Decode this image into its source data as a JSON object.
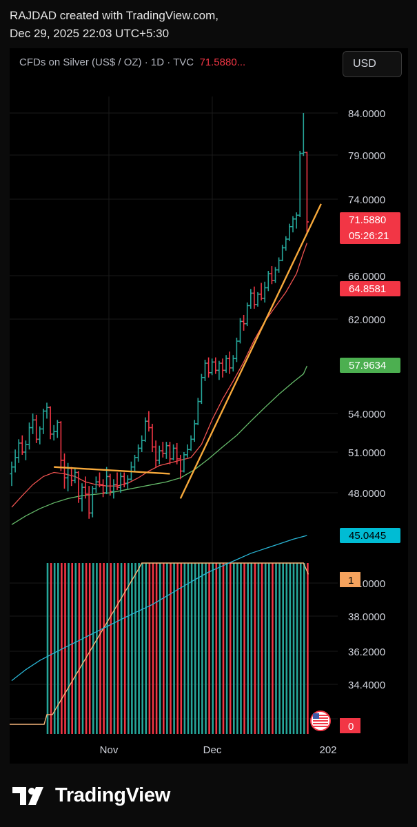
{
  "header": {
    "line1": "RAJDAD created with TradingView.com,",
    "line2": "Dec 29, 2025 22:03 UTC+5:30"
  },
  "symbol": {
    "name": "CFDs on Silver (US$ / OZ) · 1D · TVC",
    "price": "71.5880..."
  },
  "currency_button": "USD",
  "brand": {
    "name": "TradingView"
  },
  "colors": {
    "up": "#26a69a",
    "down": "#f23645",
    "trendline": "#f7a93b",
    "ma_red": "#ef5350",
    "ma_green": "#66bb6a",
    "ma_blue": "#29b6d6",
    "indicator_orange": "#f5b57a"
  },
  "chart_data": {
    "type": "ohlc",
    "x_ticks": [
      "Nov",
      "Dec",
      "202"
    ],
    "y_ticks": [
      "84.0000",
      "79.0000",
      "74.0000",
      "66.0000",
      "62.0000",
      "54.0000",
      "51.0000",
      "48.0000",
      "40.0000",
      "38.0000",
      "36.2000",
      "34.4000"
    ],
    "grid": true,
    "price_labels": [
      {
        "text": "71.5880",
        "sub": "05:26:21",
        "color": "#f23645",
        "value": 71.588
      },
      {
        "text": "64.8581",
        "color": "#f23645",
        "value": 64.8581
      },
      {
        "text": "57.9634",
        "color": "#4caf50",
        "value": 57.9634
      },
      {
        "text": "45.0445",
        "color": "#00bcd4",
        "value": 45.0445
      }
    ],
    "indicator_labels": [
      {
        "text": "1",
        "color": "#f5a25d"
      },
      {
        "text": "0",
        "color": "#f23645"
      }
    ],
    "bars": [
      [
        49.4,
        50.3,
        48.5,
        49.9
      ],
      [
        49.9,
        51.2,
        49.5,
        50.6
      ],
      [
        50.6,
        52.0,
        50.2,
        51.7
      ],
      [
        51.7,
        52.3,
        50.8,
        51.0
      ],
      [
        51.0,
        51.9,
        50.4,
        51.6
      ],
      [
        51.6,
        53.3,
        51.2,
        52.9
      ],
      [
        52.9,
        54.0,
        52.4,
        53.5
      ],
      [
        53.5,
        53.9,
        51.7,
        52.0
      ],
      [
        52.0,
        53.0,
        51.6,
        52.8
      ],
      [
        52.8,
        54.4,
        52.4,
        54.2
      ],
      [
        54.2,
        54.9,
        53.6,
        54.5
      ],
      [
        54.5,
        54.6,
        52.0,
        52.4
      ],
      [
        52.4,
        53.1,
        51.9,
        52.6
      ],
      [
        52.6,
        53.5,
        52.1,
        53.3
      ],
      [
        53.3,
        53.4,
        49.6,
        50.4
      ],
      [
        50.4,
        50.9,
        48.3,
        49.1
      ],
      [
        49.1,
        50.2,
        48.1,
        49.8
      ],
      [
        49.8,
        49.9,
        48.5,
        48.9
      ],
      [
        48.9,
        49.8,
        48.7,
        49.5
      ],
      [
        49.5,
        49.6,
        47.3,
        47.6
      ],
      [
        47.6,
        48.7,
        46.7,
        48.4
      ],
      [
        48.4,
        49.2,
        47.6,
        47.9
      ],
      [
        47.9,
        48.5,
        46.2,
        46.6
      ],
      [
        46.6,
        48.5,
        46.3,
        48.3
      ],
      [
        48.3,
        49.2,
        48.0,
        48.8
      ],
      [
        48.8,
        49.5,
        48.4,
        48.6
      ],
      [
        48.6,
        49.0,
        47.7,
        48.0
      ],
      [
        48.0,
        49.9,
        47.9,
        49.2
      ],
      [
        49.2,
        49.4,
        47.8,
        48.1
      ],
      [
        48.1,
        49.0,
        47.6,
        48.6
      ],
      [
        48.6,
        49.5,
        48.2,
        48.4
      ],
      [
        48.4,
        49.5,
        48.0,
        49.2
      ],
      [
        49.2,
        49.5,
        48.4,
        48.7
      ],
      [
        48.7,
        49.3,
        48.3,
        49.0
      ],
      [
        49.0,
        50.3,
        48.9,
        49.9
      ],
      [
        49.9,
        50.8,
        49.5,
        50.6
      ],
      [
        50.6,
        51.6,
        50.3,
        51.3
      ],
      [
        51.3,
        52.3,
        51.0,
        51.9
      ],
      [
        51.9,
        53.7,
        51.8,
        53.4
      ],
      [
        53.4,
        54.2,
        52.6,
        52.9
      ],
      [
        52.9,
        53.2,
        51.0,
        51.4
      ],
      [
        51.4,
        51.9,
        49.9,
        50.4
      ],
      [
        50.4,
        51.5,
        50.1,
        51.1
      ],
      [
        51.1,
        51.8,
        50.6,
        50.9
      ],
      [
        50.9,
        51.8,
        50.5,
        51.5
      ],
      [
        51.5,
        51.8,
        50.1,
        50.5
      ],
      [
        50.5,
        51.6,
        50.4,
        51.3
      ],
      [
        51.3,
        51.7,
        50.1,
        50.5
      ],
      [
        50.5,
        50.8,
        49.0,
        49.6
      ],
      [
        49.6,
        51.0,
        49.5,
        50.8
      ],
      [
        50.8,
        51.6,
        50.6,
        51.2
      ],
      [
        51.2,
        52.3,
        51.1,
        52.0
      ],
      [
        52.0,
        53.5,
        51.8,
        53.2
      ],
      [
        53.2,
        55.3,
        53.1,
        55.0
      ],
      [
        55.0,
        57.3,
        54.8,
        57.0
      ],
      [
        57.0,
        58.5,
        56.7,
        58.2
      ],
      [
        58.2,
        58.7,
        57.0,
        57.4
      ],
      [
        57.4,
        58.6,
        57.2,
        58.3
      ],
      [
        58.3,
        58.7,
        57.3,
        57.6
      ],
      [
        57.6,
        58.4,
        56.8,
        58.2
      ],
      [
        58.2,
        58.6,
        57.0,
        57.6
      ],
      [
        57.6,
        58.9,
        57.4,
        58.6
      ],
      [
        58.6,
        59.2,
        57.3,
        57.8
      ],
      [
        57.8,
        58.9,
        57.5,
        58.6
      ],
      [
        58.6,
        60.4,
        58.3,
        60.1
      ],
      [
        60.1,
        62.1,
        59.9,
        61.8
      ],
      [
        61.8,
        62.4,
        61.0,
        61.6
      ],
      [
        61.6,
        63.6,
        61.4,
        63.3
      ],
      [
        63.3,
        64.9,
        63.0,
        64.5
      ],
      [
        64.5,
        65.1,
        63.0,
        63.4
      ],
      [
        63.4,
        64.6,
        63.2,
        64.4
      ],
      [
        64.4,
        65.4,
        63.8,
        64.0
      ],
      [
        64.0,
        65.5,
        63.6,
        65.0
      ],
      [
        65.0,
        66.5,
        64.7,
        66.2
      ],
      [
        66.2,
        67.0,
        65.3,
        65.6
      ],
      [
        65.6,
        66.9,
        65.4,
        66.6
      ],
      [
        66.6,
        67.9,
        66.3,
        67.6
      ],
      [
        67.6,
        69.2,
        67.5,
        68.9
      ],
      [
        68.9,
        70.1,
        68.6,
        69.8
      ],
      [
        69.8,
        71.4,
        69.6,
        71.1
      ],
      [
        71.1,
        72.2,
        70.5,
        71.9
      ],
      [
        71.9,
        72.6,
        70.9,
        72.3
      ],
      [
        72.3,
        79.5,
        72.1,
        79.2
      ],
      [
        79.2,
        84.0,
        78.9,
        79.3
      ],
      [
        79.3,
        79.4,
        70.3,
        71.588
      ]
    ],
    "ma_red": [
      [
        0,
        47.0
      ],
      [
        3,
        47.8
      ],
      [
        6,
        48.6
      ],
      [
        9,
        49.2
      ],
      [
        12,
        49.5
      ],
      [
        15,
        49.4
      ],
      [
        18,
        49.2
      ],
      [
        21,
        48.8
      ],
      [
        24,
        48.6
      ],
      [
        27,
        48.5
      ],
      [
        30,
        48.5
      ],
      [
        33,
        48.7
      ],
      [
        36,
        49.1
      ],
      [
        39,
        49.6
      ],
      [
        42,
        50.0
      ],
      [
        45,
        50.2
      ],
      [
        48,
        50.4
      ],
      [
        51,
        50.6
      ],
      [
        54,
        51.6
      ],
      [
        57,
        53.5
      ],
      [
        60,
        55.2
      ],
      [
        63,
        56.7
      ],
      [
        66,
        58.3
      ],
      [
        69,
        60.2
      ],
      [
        72,
        61.8
      ],
      [
        75,
        63.2
      ],
      [
        78,
        64.6
      ],
      [
        81,
        66.2
      ],
      [
        83,
        68.4
      ],
      [
        84,
        69.4
      ]
    ],
    "ma_green": [
      [
        0,
        45.8
      ],
      [
        4,
        46.4
      ],
      [
        8,
        46.9
      ],
      [
        12,
        47.3
      ],
      [
        16,
        47.6
      ],
      [
        20,
        47.8
      ],
      [
        24,
        47.9
      ],
      [
        28,
        48.0
      ],
      [
        32,
        48.2
      ],
      [
        36,
        48.4
      ],
      [
        40,
        48.6
      ],
      [
        44,
        48.8
      ],
      [
        48,
        49.1
      ],
      [
        52,
        49.7
      ],
      [
        56,
        50.5
      ],
      [
        60,
        51.4
      ],
      [
        64,
        52.3
      ],
      [
        68,
        53.4
      ],
      [
        72,
        54.5
      ],
      [
        76,
        55.6
      ],
      [
        80,
        56.6
      ],
      [
        83,
        57.3
      ],
      [
        84,
        57.9634
      ]
    ],
    "ma_blue": [
      [
        0,
        36.4
      ],
      [
        4,
        37.0
      ],
      [
        8,
        37.5
      ],
      [
        12,
        37.9
      ],
      [
        16,
        38.3
      ],
      [
        20,
        38.7
      ],
      [
        24,
        39.1
      ],
      [
        28,
        39.5
      ],
      [
        32,
        39.9
      ],
      [
        36,
        40.3
      ],
      [
        40,
        40.7
      ],
      [
        44,
        41.2
      ],
      [
        48,
        41.7
      ],
      [
        52,
        42.2
      ],
      [
        56,
        42.7
      ],
      [
        60,
        43.1
      ],
      [
        64,
        43.5
      ],
      [
        68,
        43.9
      ],
      [
        72,
        44.2
      ],
      [
        76,
        44.5
      ],
      [
        80,
        44.8
      ],
      [
        84,
        45.0445
      ]
    ],
    "trendlines": [
      {
        "x0": 12,
        "y0": 49.9,
        "x1": 45,
        "y1": 49.4
      },
      {
        "x0": 48,
        "y0": 47.6,
        "x1": 88,
        "y1": 73.5
      }
    ],
    "indicator": {
      "bar_start": 10,
      "top_plateau_start": 37,
      "top_plateau_end": 83,
      "ramp_start": 10,
      "ramp_end": 36,
      "last_value": 0.93
    }
  }
}
